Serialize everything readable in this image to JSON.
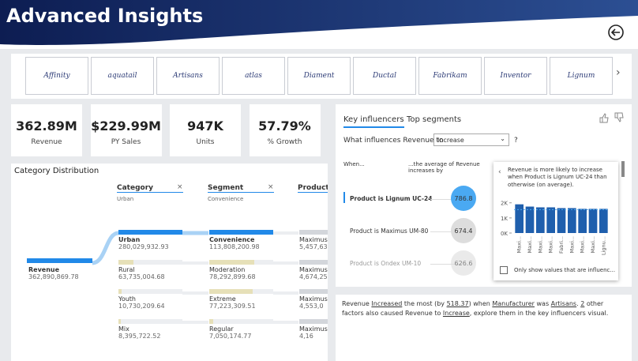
{
  "header": {
    "title": "Advanced Insights"
  },
  "brands": [
    "Affinity",
    "aquatail",
    "Artisans",
    "atlas",
    "Diament",
    "Ductal",
    "Fabrikam",
    "Inventor",
    "Lignum"
  ],
  "kpis": [
    {
      "value": "362.89M",
      "label": "Revenue"
    },
    {
      "value": "$229.99M",
      "label": "PY Sales"
    },
    {
      "value": "947K",
      "label": "Units"
    },
    {
      "value": "57.79%",
      "label": "% Growth"
    }
  ],
  "tree": {
    "title": "Category Distribution",
    "root": {
      "name": "Revenue",
      "value": "362,890,869.78"
    },
    "columns": [
      {
        "name": "Category",
        "filter": "Urban"
      },
      {
        "name": "Segment",
        "filter": "Convenience"
      },
      {
        "name": "Product"
      }
    ],
    "category": [
      {
        "name": "Urban",
        "value": "280,029,932.93"
      },
      {
        "name": "Rural",
        "value": "63,735,004.68"
      },
      {
        "name": "Youth",
        "value": "10,730,209.64"
      },
      {
        "name": "Mix",
        "value": "8,395,722.52"
      }
    ],
    "segment": [
      {
        "name": "Convenience",
        "value": "113,808,200.98"
      },
      {
        "name": "Moderation",
        "value": "78,292,899.68"
      },
      {
        "name": "Extreme",
        "value": "77,223,309.51"
      },
      {
        "name": "Regular",
        "value": "7,050,174.77"
      }
    ],
    "product": [
      {
        "name": "Maximus",
        "value": "5,457,63"
      },
      {
        "name": "Maximus",
        "value": "4,674,25"
      },
      {
        "name": "Maximus",
        "value": "4,553,0"
      },
      {
        "name": "Maximus",
        "value": "4,16"
      }
    ]
  },
  "influencers": {
    "tabs": [
      "Key influencers",
      "Top segments"
    ],
    "question": "What influences Revenue to",
    "dropdown": "Increase",
    "help": "?",
    "col_when": "When...",
    "col_avg": "...the average of Revenue increases by",
    "rows": [
      {
        "label": "Product is Lignum UC-24",
        "value": "786.8"
      },
      {
        "label": "Product is Maximus UM-80",
        "value": "674.4"
      },
      {
        "label": "Product is Ondex UM-10",
        "value": "626.6"
      }
    ],
    "detail": {
      "text": "Revenue is more likely to increase when Product is Lignum UC-24 than otherwise (on average).",
      "ylim": [
        0,
        2.3
      ],
      "yticks": [
        {
          "value": 0,
          "label": "0K"
        },
        {
          "value": 1,
          "label": "1K"
        },
        {
          "value": 2,
          "label": "2K"
        }
      ],
      "categories": [
        "Maxi...",
        "Maxi...",
        "Maxi...",
        "Maxi...",
        "Fabri...",
        "Maxi...",
        "Maxi...",
        "Maxi...",
        "Lignu..."
      ],
      "values": [
        1.9,
        1.75,
        1.7,
        1.7,
        1.65,
        1.65,
        1.6,
        1.6,
        1.6
      ],
      "color": "#1f5fad",
      "checkbox": "Only show values that are influenc..."
    }
  },
  "footer": {
    "parts": [
      "Revenue ",
      "Increased",
      " the most (by ",
      "518.37",
      ") when ",
      "Manufacturer",
      " was ",
      "Artisans",
      ". ",
      "2",
      " other factors also caused Revenue to ",
      "Increase",
      ", explore them in the key influencers visual."
    ]
  }
}
